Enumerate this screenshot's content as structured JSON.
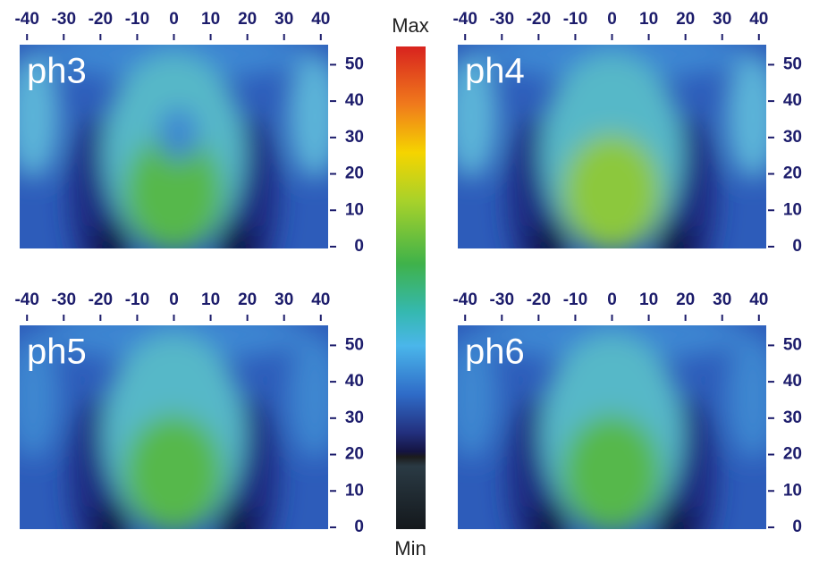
{
  "chart_data": [
    {
      "type": "heatmap",
      "title": "ph3",
      "xlim": [
        -42,
        42
      ],
      "ylim": [
        -0.5,
        55.5
      ],
      "xticks": [
        -40,
        -30,
        -20,
        -10,
        0,
        10,
        20,
        30,
        40
      ],
      "yticks": [
        0,
        10,
        20,
        30,
        40,
        50
      ]
    },
    {
      "type": "heatmap",
      "title": "ph4",
      "xlim": [
        -42,
        42
      ],
      "ylim": [
        -0.5,
        55.5
      ],
      "xticks": [
        -40,
        -30,
        -20,
        -10,
        0,
        10,
        20,
        30,
        40
      ],
      "yticks": [
        0,
        10,
        20,
        30,
        40,
        50
      ]
    },
    {
      "type": "heatmap",
      "title": "ph5",
      "xlim": [
        -42,
        42
      ],
      "ylim": [
        -0.5,
        55.5
      ],
      "xticks": [
        -40,
        -30,
        -20,
        -10,
        0,
        10,
        20,
        30,
        40
      ],
      "yticks": [
        0,
        10,
        20,
        30,
        40,
        50
      ]
    },
    {
      "type": "heatmap",
      "title": "ph6",
      "xlim": [
        -42,
        42
      ],
      "ylim": [
        -0.5,
        55.5
      ],
      "xticks": [
        -40,
        -30,
        -20,
        -10,
        0,
        10,
        20,
        30,
        40
      ],
      "yticks": [
        0,
        10,
        20,
        30,
        40,
        50
      ]
    }
  ],
  "colorbar": {
    "max_label": "Max",
    "min_label": "Min"
  }
}
